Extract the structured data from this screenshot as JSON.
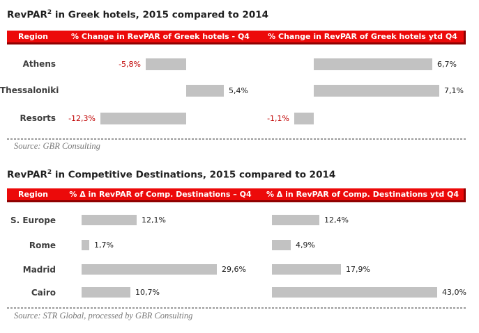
{
  "colors": {
    "header_bg": "#ec0a0a",
    "header_border": "#8f0000",
    "header_text": "#ffffff",
    "bar": "#c2c2c2",
    "negative_value": "#c00000",
    "positive_value": "#1a1a1a",
    "title_text": "#1f1f1f",
    "region_text": "#3d3d3d",
    "source_text": "#7a7a7a"
  },
  "chart_data": [
    {
      "type": "bar",
      "orientation": "horizontal",
      "title_prefix": "RevPAR",
      "title_sup": "2",
      "title_rest": " in Greek hotels, 2015 compared to 2014",
      "title_full": "RevPAR² in Greek hotels, 2015 compared to 2014",
      "header": {
        "region": "Region",
        "col1": "% Change in RevPAR of Greek hotels - Q4",
        "col2": "% Change in RevPAR of Greek hotels ytd Q4"
      },
      "categories": [
        "Athens",
        "Thessaloniki",
        "Resorts"
      ],
      "series": [
        {
          "name": "% Change in RevPAR of Greek hotels - Q4",
          "values": [
            -5.8,
            5.4,
            -12.3
          ],
          "labels": [
            "-5,8%",
            "5,4%",
            "-12,3%"
          ]
        },
        {
          "name": "% Change in RevPAR of Greek hotels ytd Q4",
          "values": [
            6.7,
            7.1,
            -1.1
          ],
          "labels": [
            "6,7%",
            "7,1%",
            "-1,1%"
          ]
        }
      ],
      "value_format": "decimal-comma percent, negatives in red to the left of bar",
      "source": "Source: GBR Consulting"
    },
    {
      "type": "bar",
      "orientation": "horizontal",
      "title_prefix": "RevPAR",
      "title_sup": "2",
      "title_rest": " in Competitive Destinations, 2015 compared to 2014",
      "title_full": "RevPAR² in Competitive Destinations, 2015 compared to 2014",
      "header": {
        "region": "Region",
        "col1": "% Δ in RevPAR of Comp. Destinations – Q4",
        "col2": "% Δ in RevPAR of Comp. Destinations ytd Q4"
      },
      "categories": [
        "S. Europe",
        "Rome",
        "Madrid",
        "Cairo"
      ],
      "series": [
        {
          "name": "% Δ in RevPAR of Comp. Destinations – Q4",
          "values": [
            12.1,
            1.7,
            29.6,
            10.7
          ],
          "labels": [
            "12,1%",
            "1,7%",
            "29,6%",
            "10,7%"
          ]
        },
        {
          "name": "% Δ in RevPAR of Comp. Destinations ytd Q4",
          "values": [
            12.4,
            4.9,
            17.9,
            43.0
          ],
          "labels": [
            "12,4%",
            "4,9%",
            "17,9%",
            "43,0%"
          ]
        }
      ],
      "value_format": "decimal-comma percent, negatives in red to the left of bar",
      "source": "Source: STR Global, processed by GBR Consulting"
    }
  ]
}
